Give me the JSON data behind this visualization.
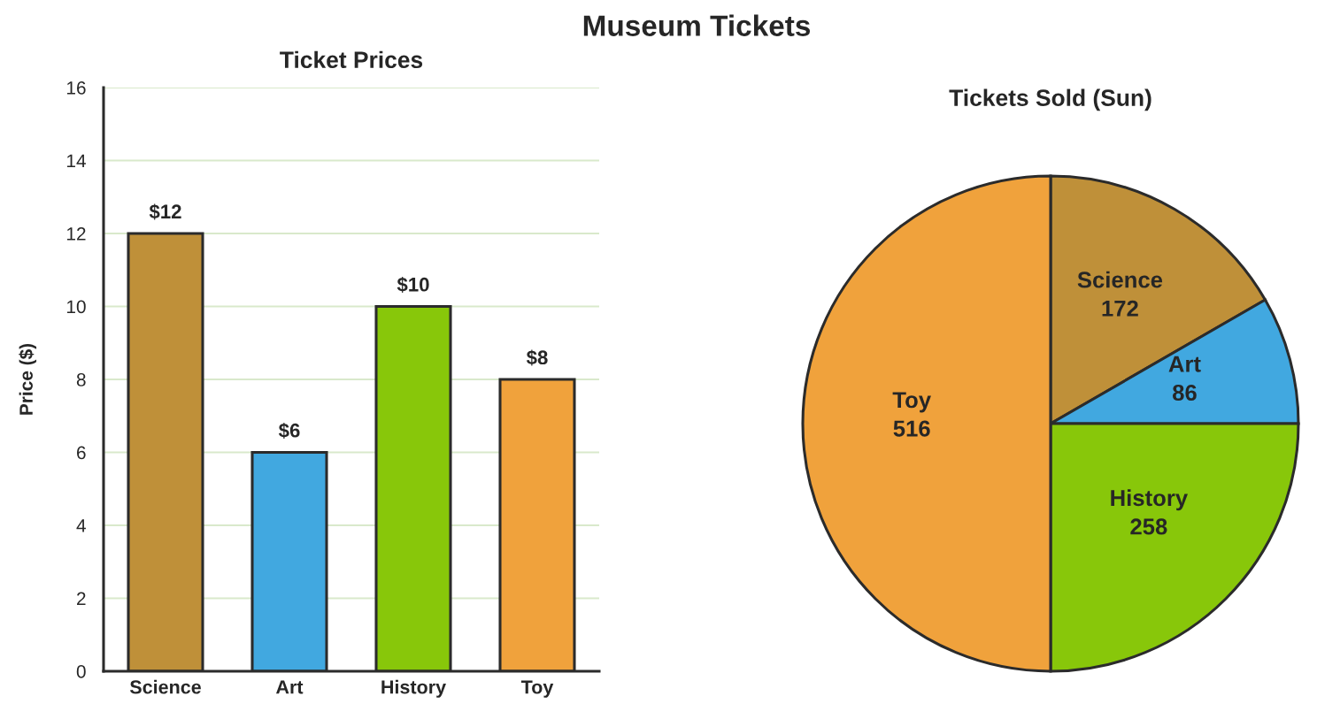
{
  "chart_data": [
    {
      "type": "bar",
      "title": "Ticket Prices",
      "ylabel": "Price ($)",
      "annotations": [
        "Museum Tickets"
      ],
      "categories": [
        "Science",
        "Art",
        "History",
        "Toy"
      ],
      "values": [
        12,
        6,
        10,
        8
      ],
      "colors": [
        "#bf9039",
        "#41a8e0",
        "#88c70a",
        "#f0a23c"
      ],
      "value_labels": [
        "$12",
        "$6",
        "$10",
        "$8"
      ],
      "ylim": [
        0,
        16
      ],
      "yticks": [
        0,
        2,
        4,
        6,
        8,
        10,
        12,
        14,
        16
      ],
      "grid": "y"
    },
    {
      "type": "pie",
      "title": "Tickets Sold (Sun)",
      "categories": [
        "Science",
        "Art",
        "History",
        "Toy"
      ],
      "values": [
        172,
        86,
        258,
        516
      ],
      "colors": [
        "#bf9039",
        "#41a8e0",
        "#88c70a",
        "#f0a23c"
      ],
      "data_labels": true
    }
  ]
}
